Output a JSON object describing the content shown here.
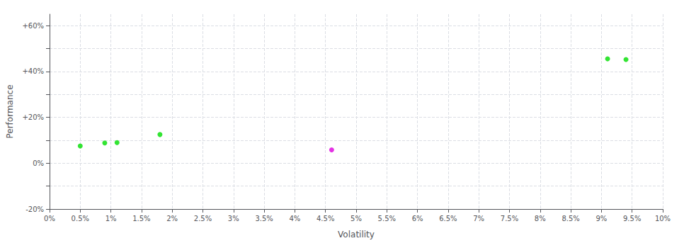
{
  "chart_data": {
    "type": "scatter",
    "xlabel": "Volatility",
    "ylabel": "Performance",
    "series": [
      {
        "color": "#00dd00",
        "x": [
          0.005,
          0.009,
          0.011,
          0.018,
          0.091,
          0.094
        ],
        "values": [
          0.075,
          0.088,
          0.09,
          0.125,
          0.455,
          0.452
        ]
      },
      {
        "color": "#dd00dd",
        "x": [
          0.046
        ],
        "values": [
          0.058
        ]
      }
    ],
    "xlim": [
      0,
      0.1
    ],
    "ylim": [
      -0.2,
      0.65
    ],
    "xticks": [
      {
        "value": 0.0,
        "label": "0%"
      },
      {
        "value": 0.005,
        "label": "0.5%"
      },
      {
        "value": 0.01,
        "label": "1%"
      },
      {
        "value": 0.015,
        "label": "1.5%"
      },
      {
        "value": 0.02,
        "label": "2%"
      },
      {
        "value": 0.025,
        "label": "2.5%"
      },
      {
        "value": 0.03,
        "label": "3%"
      },
      {
        "value": 0.035,
        "label": "3.5%"
      },
      {
        "value": 0.04,
        "label": "4%"
      },
      {
        "value": 0.045,
        "label": "4.5%"
      },
      {
        "value": 0.05,
        "label": "5%"
      },
      {
        "value": 0.055,
        "label": "5.5%"
      },
      {
        "value": 0.06,
        "label": "6%"
      },
      {
        "value": 0.065,
        "label": "6.5%"
      },
      {
        "value": 0.07,
        "label": "7%"
      },
      {
        "value": 0.075,
        "label": "7.5%"
      },
      {
        "value": 0.08,
        "label": "8%"
      },
      {
        "value": 0.085,
        "label": "8.5%"
      },
      {
        "value": 0.09,
        "label": "9%"
      },
      {
        "value": 0.095,
        "label": "9.5%"
      },
      {
        "value": 0.1,
        "label": "10%"
      }
    ],
    "yticks": [
      {
        "value": -0.2,
        "label": "-20%"
      },
      {
        "value": -0.1,
        "label": ""
      },
      {
        "value": 0.0,
        "label": "0%"
      },
      {
        "value": 0.1,
        "label": ""
      },
      {
        "value": 0.2,
        "label": "+20%"
      },
      {
        "value": 0.3,
        "label": ""
      },
      {
        "value": 0.4,
        "label": "+40%"
      },
      {
        "value": 0.5,
        "label": ""
      },
      {
        "value": 0.6,
        "label": "+60%"
      }
    ],
    "grid": true
  }
}
